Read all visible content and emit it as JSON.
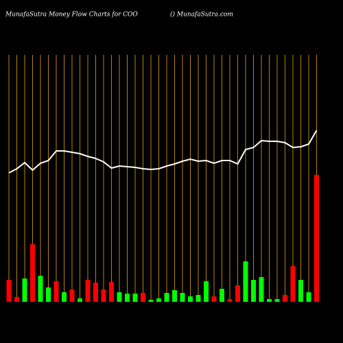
{
  "chart_data": {
    "type": "bar",
    "title": "MunafaSutra  Money Flow  Charts for COO",
    "subtitle": "() MunafaSutra.com",
    "categories": [
      null,
      null,
      null,
      null,
      null,
      null,
      null,
      null,
      null,
      null,
      null,
      null,
      null,
      null,
      null,
      null,
      null,
      null,
      null,
      null,
      null,
      null,
      null,
      null,
      null,
      null,
      null,
      null,
      null,
      null,
      null,
      null,
      null,
      null,
      null,
      null,
      null,
      null,
      null,
      null
    ],
    "ylim": [
      0,
      440
    ],
    "grid": true,
    "grid_color": "#b8860b",
    "series": [
      {
        "type": "bar",
        "values": [
          32,
          7,
          34,
          84,
          38,
          21,
          30,
          14,
          18,
          5,
          32,
          28,
          18,
          29,
          14,
          12,
          12,
          13,
          3,
          5,
          13,
          17,
          13,
          8,
          10,
          30,
          8,
          19,
          4,
          24,
          59,
          32,
          36,
          4,
          4,
          10,
          52,
          32,
          14,
          185
        ],
        "colors": [
          "#ff0000",
          "#ff0000",
          "#00ff00",
          "#ff0000",
          "#00ff00",
          "#00ff00",
          "#ff0000",
          "#00ff00",
          "#ff0000",
          "#00ff00",
          "#ff0000",
          "#ff0000",
          "#ff0000",
          "#ff0000",
          "#00ff00",
          "#00ff00",
          "#00ff00",
          "#ff0000",
          "#00ff00",
          "#00ff00",
          "#00ff00",
          "#00ff00",
          "#00ff00",
          "#00ff00",
          "#00ff00",
          "#00ff00",
          "#ff0000",
          "#00ff00",
          "#ff0000",
          "#ff0000",
          "#00ff00",
          "#00ff00",
          "#00ff00",
          "#00ff00",
          "#00ff00",
          "#ff0000",
          "#ff0000",
          "#00ff00",
          "#00ff00",
          "#ff0000"
        ]
      },
      {
        "type": "line",
        "color": "#ffffff",
        "values": [
          188,
          194,
          203,
          192,
          202,
          206,
          220,
          220,
          218,
          216,
          212,
          209,
          204,
          195,
          198,
          197,
          196,
          194,
          193,
          194,
          198,
          201,
          205,
          208,
          205,
          206,
          202,
          206,
          206,
          201,
          222,
          225,
          235,
          234,
          234,
          232,
          225,
          226,
          230,
          250
        ]
      }
    ]
  }
}
